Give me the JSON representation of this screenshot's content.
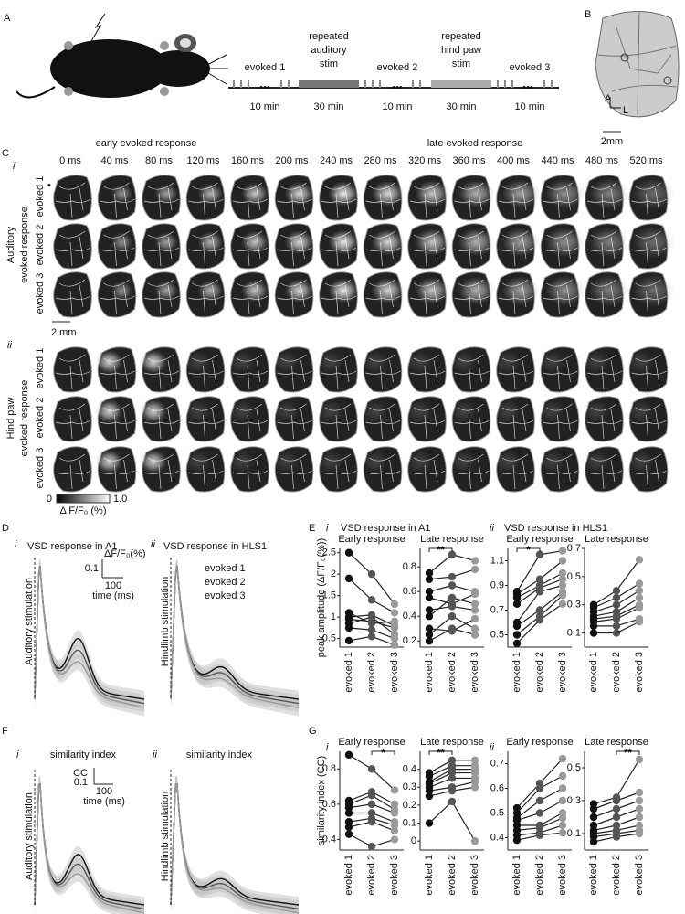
{
  "panel_A": {
    "label": "A",
    "segments": [
      {
        "lines": [
          "evoked 1"
        ],
        "duration": "10 min"
      },
      {
        "lines": [
          "repeated",
          "auditory",
          "stim"
        ],
        "duration": "30 min"
      },
      {
        "lines": [
          "evoked 2"
        ],
        "duration": "10 min"
      },
      {
        "lines": [
          "repeated",
          "hind paw",
          "stim"
        ],
        "duration": "30 min"
      },
      {
        "lines": [
          "evoked 3"
        ],
        "duration": "10 min"
      }
    ]
  },
  "panel_B": {
    "label": "B",
    "axis_a": "A",
    "axis_l": "L",
    "scale": "2mm"
  },
  "panel_C": {
    "label": "C",
    "sub": [
      "i",
      "ii"
    ],
    "early": "early evoked response",
    "late": "late evoked response",
    "times": [
      "0 ms",
      "40 ms",
      "80 ms",
      "120 ms",
      "160 ms",
      "200 ms",
      "240 ms",
      "280 ms",
      "320 ms",
      "360 ms",
      "400 ms",
      "440 ms",
      "480 ms",
      "520 ms"
    ],
    "rows": [
      "evoked 1",
      "evoked 2",
      "evoked 3"
    ],
    "groups": [
      [
        "Auditory",
        "evoked response"
      ],
      [
        "Hind paw",
        "evoked response"
      ]
    ],
    "scale": "2 mm",
    "colorbar": {
      "min": "0",
      "max": "1.0",
      "label": "Δ F/F₀ (%)"
    }
  },
  "panel_D": {
    "label": "D",
    "plots": [
      {
        "num": "i",
        "title": "VSD response in A1",
        "stim": "Auditory stimulation"
      },
      {
        "num": "ii",
        "title": "VSD response in HLS1",
        "stim": "Hindlimb stimulation"
      }
    ],
    "scale_y": "0.1",
    "scale_y_label": "ΔF/F₀(%)",
    "scale_x": "100",
    "scale_x_label": "time (ms)",
    "legend": [
      {
        "name": "evoked 1",
        "color": "#111111"
      },
      {
        "name": "evoked 2",
        "color": "#555555"
      },
      {
        "name": "evoked 3",
        "color": "#9a9a9a"
      }
    ]
  },
  "panel_E": {
    "label": "E",
    "ylabel": "peak amplitude (ΔF/F₀(%))",
    "groups": [
      {
        "num": "i",
        "title": "VSD response in A1",
        "plots": [
          {
            "title": "Early response",
            "ylim": [
              0.3,
              2.6
            ],
            "yticks": [
              0.5,
              1,
              1.5,
              2,
              2.5
            ],
            "categories": [
              "evoked 1",
              "evoked 2",
              "evoked 3"
            ],
            "subjects": [
              [
                2.5,
                2.0,
                1.3
              ],
              [
                1.9,
                1.4,
                1.1
              ],
              [
                1.1,
                0.85,
                0.9
              ],
              [
                1.0,
                1.05,
                0.8
              ],
              [
                0.95,
                0.9,
                0.75
              ],
              [
                0.85,
                1.0,
                0.6
              ],
              [
                0.75,
                0.7,
                0.5
              ],
              [
                0.45,
                0.55,
                0.35
              ]
            ]
          },
          {
            "title": "Late response",
            "ylim": [
              0.15,
              0.95
            ],
            "yticks": [
              0.2,
              0.4,
              0.6,
              0.8
            ],
            "categories": [
              "evoked 1",
              "evoked 2",
              "evoked 3"
            ],
            "subjects": [
              [
                0.75,
                0.9,
                0.85
              ],
              [
                0.7,
                0.72,
                0.78
              ],
              [
                0.6,
                0.65,
                0.6
              ],
              [
                0.55,
                0.5,
                0.58
              ],
              [
                0.45,
                0.48,
                0.45
              ],
              [
                0.4,
                0.55,
                0.5
              ],
              [
                0.3,
                0.28,
                0.38
              ],
              [
                0.25,
                0.4,
                0.3
              ],
              [
                0.2,
                0.3,
                0.25
              ]
            ],
            "significance": {
              "label": "**",
              "from": "evoked 1",
              "to": "evoked 2"
            }
          }
        ]
      },
      {
        "num": "ii",
        "title": "VSD response in HLS1",
        "plots": [
          {
            "title": "Early response",
            "ylim": [
              0.4,
              1.2
            ],
            "yticks": [
              0.5,
              0.7,
              0.9,
              1.1
            ],
            "categories": [
              "evoked 1",
              "evoked 2",
              "evoked 3"
            ],
            "subjects": [
              [
                0.85,
                1.15,
                1.18
              ],
              [
                0.83,
                0.95,
                1.1
              ],
              [
                0.8,
                0.9,
                1.0
              ],
              [
                0.75,
                0.88,
                0.95
              ],
              [
                0.6,
                0.85,
                0.9
              ],
              [
                0.57,
                0.7,
                0.85
              ],
              [
                0.5,
                0.65,
                0.82
              ],
              [
                0.43,
                0.62,
                0.75
              ]
            ],
            "significance": {
              "label": "*",
              "from": "evoked 1",
              "to": "evoked 2"
            }
          },
          {
            "title": "Late response",
            "ylim": [
              0,
              0.7
            ],
            "yticks": [
              0.1,
              0.3,
              0.5,
              0.7
            ],
            "categories": [
              "evoked 1",
              "evoked 2",
              "evoked 3"
            ],
            "subjects": [
              [
                0.3,
                0.4,
                0.62
              ],
              [
                0.28,
                0.35,
                0.45
              ],
              [
                0.25,
                0.3,
                0.4
              ],
              [
                0.22,
                0.25,
                0.35
              ],
              [
                0.2,
                0.22,
                0.3
              ],
              [
                0.18,
                0.2,
                0.28
              ],
              [
                0.15,
                0.15,
                0.2
              ],
              [
                0.1,
                0.1,
                0.18
              ]
            ]
          }
        ]
      }
    ]
  },
  "panel_F": {
    "label": "F",
    "plots": [
      {
        "num": "i",
        "title": "similarity index",
        "stim": "Auditory stimulation"
      },
      {
        "num": "ii",
        "title": "similarity index",
        "stim": "Hindlimb stimulation"
      }
    ],
    "scale_y": "0.1",
    "scale_y_label": "CC",
    "scale_x": "100",
    "scale_x_label": "time (ms)"
  },
  "panel_G": {
    "label": "G",
    "ylabel": "similarity index (CC)",
    "groups": [
      {
        "num": "i",
        "plots": [
          {
            "title": "Early response",
            "ylim": [
              0.34,
              0.9
            ],
            "yticks": [
              0.4,
              0.6,
              0.8
            ],
            "categories": [
              "evoked 1",
              "evoked 2",
              "evoked 3"
            ],
            "subjects": [
              [
                0.88,
                0.8,
                0.68
              ],
              [
                0.62,
                0.67,
                0.6
              ],
              [
                0.6,
                0.65,
                0.57
              ],
              [
                0.58,
                0.6,
                0.55
              ],
              [
                0.55,
                0.55,
                0.5
              ],
              [
                0.5,
                0.52,
                0.48
              ],
              [
                0.47,
                0.5,
                0.45
              ],
              [
                0.43,
                0.36,
                0.4
              ]
            ],
            "significance": {
              "label": "*",
              "from": "evoked 2",
              "to": "evoked 3"
            }
          },
          {
            "title": "Late response",
            "ylim": [
              -0.05,
              0.5
            ],
            "yticks": [
              0,
              0.1,
              0.2,
              0.3,
              0.4
            ],
            "categories": [
              "evoked 1",
              "evoked 2",
              "evoked 3"
            ],
            "subjects": [
              [
                0.38,
                0.45,
                0.45
              ],
              [
                0.36,
                0.42,
                0.42
              ],
              [
                0.33,
                0.4,
                0.4
              ],
              [
                0.32,
                0.38,
                0.38
              ],
              [
                0.3,
                0.35,
                0.35
              ],
              [
                0.28,
                0.3,
                0.33
              ],
              [
                0.25,
                0.28,
                0.3
              ],
              [
                0.1,
                0.22,
                0.0
              ]
            ],
            "significance": {
              "label": "**",
              "from": "evoked 1",
              "to": "evoked 2"
            }
          }
        ]
      },
      {
        "num": "ii",
        "plots": [
          {
            "title": "Early response",
            "ylim": [
              0.35,
              0.75
            ],
            "yticks": [
              0.4,
              0.5,
              0.6,
              0.7
            ],
            "categories": [
              "evoked 1",
              "evoked 2",
              "evoked 3"
            ],
            "subjects": [
              [
                0.52,
                0.62,
                0.72
              ],
              [
                0.5,
                0.6,
                0.65
              ],
              [
                0.48,
                0.55,
                0.6
              ],
              [
                0.47,
                0.5,
                0.55
              ],
              [
                0.45,
                0.45,
                0.5
              ],
              [
                0.43,
                0.44,
                0.48
              ],
              [
                0.41,
                0.42,
                0.45
              ],
              [
                0.39,
                0.41,
                0.42
              ]
            ]
          },
          {
            "title": "Late response",
            "ylim": [
              0,
              0.6
            ],
            "yticks": [
              0.1,
              0.3,
              0.5
            ],
            "categories": [
              "evoked 1",
              "evoked 2",
              "evoked 3"
            ],
            "subjects": [
              [
                0.28,
                0.32,
                0.55
              ],
              [
                0.25,
                0.3,
                0.35
              ],
              [
                0.2,
                0.25,
                0.3
              ],
              [
                0.15,
                0.2,
                0.25
              ],
              [
                0.12,
                0.15,
                0.2
              ],
              [
                0.1,
                0.12,
                0.15
              ],
              [
                0.08,
                0.1,
                0.12
              ],
              [
                0.05,
                0.08,
                0.1
              ]
            ],
            "significance": {
              "label": "**",
              "from": "evoked 2",
              "to": "evoked 3"
            }
          }
        ]
      }
    ]
  }
}
